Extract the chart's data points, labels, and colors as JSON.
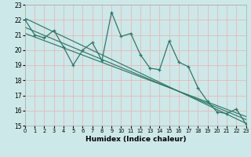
{
  "xlabel": "Humidex (Indice chaleur)",
  "bg_color": "#cde8e8",
  "grid_color": "#e8b8b8",
  "line_color": "#2a7a6a",
  "xlim": [
    0,
    23
  ],
  "ylim": [
    15,
    23
  ],
  "xticks": [
    0,
    1,
    2,
    3,
    4,
    5,
    6,
    7,
    8,
    9,
    10,
    11,
    12,
    13,
    14,
    15,
    16,
    17,
    18,
    19,
    20,
    21,
    22,
    23
  ],
  "yticks": [
    15,
    16,
    17,
    18,
    19,
    20,
    21,
    22,
    23
  ],
  "main_series_x": [
    0,
    1,
    2,
    3,
    4,
    5,
    6,
    7,
    8,
    9,
    10,
    11,
    12,
    13,
    14,
    15,
    16,
    17,
    18,
    19,
    20,
    21,
    22,
    23
  ],
  "main_series_y": [
    22.0,
    21.0,
    20.8,
    21.3,
    20.2,
    19.0,
    20.0,
    20.5,
    19.3,
    22.5,
    20.9,
    21.1,
    19.7,
    18.8,
    18.7,
    20.6,
    19.2,
    18.9,
    17.5,
    16.6,
    15.9,
    15.8,
    16.1,
    15.1
  ],
  "reg_lines": [
    [
      0,
      22.1,
      23,
      15.15
    ],
    [
      0,
      21.5,
      23,
      15.4
    ],
    [
      0,
      21.1,
      23,
      15.6
    ]
  ]
}
